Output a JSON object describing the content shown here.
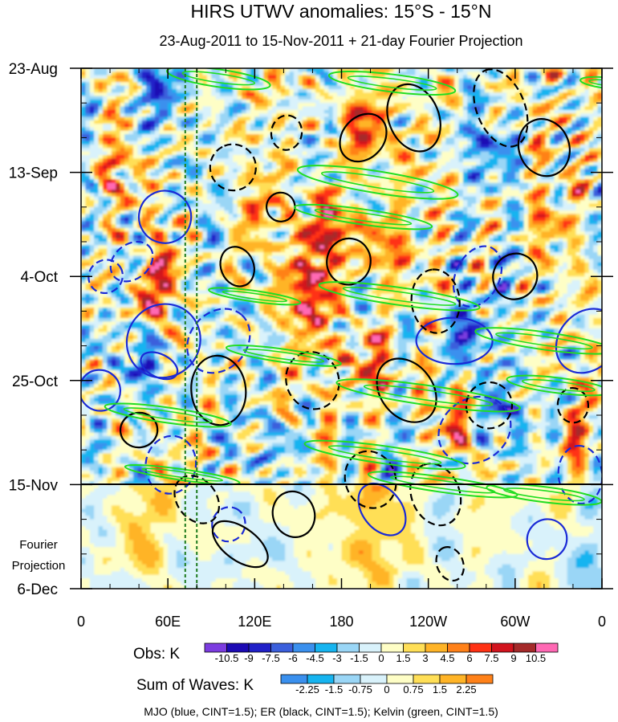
{
  "chart_data": {
    "type": "heatmap",
    "title": "HIRS UTWV anomalies: 15°S - 15°N",
    "subtitle": "23-Aug-2011 to 15-Nov-2011 + 21-day Fourier Projection",
    "x_axis": {
      "ticks": [
        "0",
        "60E",
        "120E",
        "180",
        "120W",
        "60W",
        "0"
      ],
      "range_deg_east": [
        0,
        360
      ]
    },
    "y_axis": {
      "ticks": [
        "23-Aug",
        "13-Sep",
        "4-Oct",
        "25-Oct",
        "15-Nov",
        "6-Dec"
      ],
      "tick_days": [
        0,
        21,
        42,
        63,
        84,
        105
      ],
      "orientation": "time increases downward"
    },
    "annotations": {
      "projection_label": [
        "Fourier",
        "Projection"
      ],
      "projection_start": "15-Nov",
      "footer": "MJO (blue, CINT=1.5); ER (black, CINT=1.5); Kelvin (green, CINT=1.5)"
    },
    "obs_colorbar": {
      "label": "Obs: K",
      "tick_labels": [
        "-10.5",
        "-9",
        "-7.5",
        "-6",
        "-4.5",
        "-3",
        "-1.5",
        "0",
        "1.5",
        "3",
        "4.5",
        "6",
        "7.5",
        "9",
        "10.5"
      ],
      "colors": [
        "#7c3ce0",
        "#1c0ab4",
        "#2020c8",
        "#3b5fdc",
        "#3a90ee",
        "#16b4f0",
        "#9ad6f6",
        "#d9f2fb",
        "#fefec6",
        "#ffdf57",
        "#ffb427",
        "#ff8119",
        "#ff3214",
        "#d2141e",
        "#a52a2a",
        "#ff69b4"
      ]
    },
    "waves_colorbar": {
      "label": "Sum of Waves: K",
      "tick_labels": [
        "-2.25",
        "-1.5",
        "-0.75",
        "0",
        "0.75",
        "1.5",
        "2.25"
      ],
      "colors": [
        "#3a90ee",
        "#16b4f0",
        "#9ad6f6",
        "#d9f2fb",
        "#fefec6",
        "#ffdf57",
        "#ffb427",
        "#ff8119"
      ]
    },
    "series": [
      {
        "name": "MJO",
        "color": "#1a2ad6",
        "cint": 1.5
      },
      {
        "name": "ER",
        "color": "#000000",
        "cint": 1.5
      },
      {
        "name": "Kelvin",
        "color": "#22dd22",
        "cint": 1.5
      }
    ],
    "reference_longitudes_deg_east": [
      72,
      80
    ],
    "contours": {
      "MJO": [
        {
          "lon": 58,
          "day": 30,
          "a": 9,
          "b": 2.4,
          "rot": -10,
          "sign": 1
        },
        {
          "lon": 57,
          "day": 55,
          "a": 13,
          "b": 3.3,
          "rot": -14,
          "sign": 1
        },
        {
          "lon": 54,
          "day": 60,
          "a": 4,
          "b": 1.8,
          "rot": -20,
          "sign": 1
        },
        {
          "lon": 17,
          "day": 42,
          "a": 6,
          "b": 1.5,
          "rot": -10,
          "sign": -1
        },
        {
          "lon": 13,
          "day": 65,
          "a": 7,
          "b": 1.9,
          "rot": -15,
          "sign": 1
        },
        {
          "lon": 35,
          "day": 39,
          "a": 8,
          "b": 1.6,
          "rot": -12,
          "sign": -1
        },
        {
          "lon": 95,
          "day": 55,
          "a": 12,
          "b": 2.6,
          "rot": -15,
          "sign": -1
        },
        {
          "lon": 62,
          "day": 80,
          "a": 10,
          "b": 2.3,
          "rot": -25,
          "sign": -1
        },
        {
          "lon": 258,
          "day": 55,
          "a": 8,
          "b": 3.5,
          "rot": -28,
          "sign": 1
        },
        {
          "lon": 272,
          "day": 73,
          "a": 13,
          "b": 2.9,
          "rot": -10,
          "sign": -1
        },
        {
          "lon": 208,
          "day": 89,
          "a": 10,
          "b": 1.8,
          "rot": -40,
          "sign": 1
        },
        {
          "lon": 274,
          "day": 42,
          "a": 11,
          "b": 2.0,
          "rot": -20,
          "sign": -1
        },
        {
          "lon": 350,
          "day": 55,
          "a": 12,
          "b": 2.6,
          "rot": -15,
          "sign": 1
        },
        {
          "lon": 345,
          "day": 82,
          "a": 10,
          "b": 2.0,
          "rot": -30,
          "sign": -1
        },
        {
          "lon": 322,
          "day": 95,
          "a": 7,
          "b": 1.8,
          "rot": -15,
          "sign": 1
        },
        {
          "lon": 102,
          "day": 92,
          "a": 6,
          "b": 1.5,
          "rot": -20,
          "sign": -1
        }
      ],
      "ER": [
        {
          "lon": 195,
          "day": 14,
          "a": 9,
          "b": 1.9,
          "rot": -15,
          "sign": 1
        },
        {
          "lon": 230,
          "day": 10,
          "a": 12,
          "b": 2.3,
          "rot": -35,
          "sign": 1
        },
        {
          "lon": 290,
          "day": 8,
          "a": 14,
          "b": 2.2,
          "rot": -35,
          "sign": -1
        },
        {
          "lon": 320,
          "day": 16,
          "a": 10,
          "b": 2.3,
          "rot": -35,
          "sign": 1
        },
        {
          "lon": 142,
          "day": 13,
          "a": 6,
          "b": 1.4,
          "rot": -25,
          "sign": -1
        },
        {
          "lon": 105,
          "day": 20,
          "a": 8,
          "b": 2.1,
          "rot": -35,
          "sign": -1
        },
        {
          "lon": 108,
          "day": 40,
          "a": 7,
          "b": 1.5,
          "rot": -35,
          "sign": 1
        },
        {
          "lon": 138,
          "day": 28,
          "a": 5,
          "b": 1.3,
          "rot": -30,
          "sign": 1
        },
        {
          "lon": 185,
          "day": 39,
          "a": 8,
          "b": 2.0,
          "rot": -25,
          "sign": 1
        },
        {
          "lon": 245,
          "day": 47,
          "a": 11,
          "b": 2.2,
          "rot": -30,
          "sign": -1
        },
        {
          "lon": 300,
          "day": 42,
          "a": 8,
          "b": 2.0,
          "rot": -20,
          "sign": 1
        },
        {
          "lon": 160,
          "day": 63,
          "a": 10,
          "b": 2.4,
          "rot": -35,
          "sign": -1
        },
        {
          "lon": 95,
          "day": 65,
          "a": 12,
          "b": 2.5,
          "rot": -30,
          "sign": 1
        },
        {
          "lon": 225,
          "day": 65,
          "a": 12,
          "b": 2.4,
          "rot": -40,
          "sign": 1
        },
        {
          "lon": 282,
          "day": 68,
          "a": 8,
          "b": 2.1,
          "rot": -20,
          "sign": -1
        },
        {
          "lon": 200,
          "day": 83,
          "a": 10,
          "b": 2.3,
          "rot": -35,
          "sign": -1
        },
        {
          "lon": 80,
          "day": 87,
          "a": 9,
          "b": 1.8,
          "rot": -40,
          "sign": -1
        },
        {
          "lon": 147,
          "day": 90,
          "a": 8,
          "b": 1.9,
          "rot": -35,
          "sign": 1
        },
        {
          "lon": 110,
          "day": 96,
          "a": 11,
          "b": 1.5,
          "rot": -45,
          "sign": 1
        },
        {
          "lon": 245,
          "day": 86,
          "a": 11,
          "b": 2.2,
          "rot": -35,
          "sign": -1
        },
        {
          "lon": 255,
          "day": 100,
          "a": 6,
          "b": 1.2,
          "rot": -35,
          "sign": -1
        },
        {
          "lon": 40,
          "day": 73,
          "a": 6,
          "b": 1.7,
          "rot": -30,
          "sign": 1
        },
        {
          "lon": 340,
          "day": 68,
          "a": 6,
          "b": 1.4,
          "rot": -30,
          "sign": -1
        }
      ],
      "Kelvin": [
        {
          "lon": 95,
          "day": 2,
          "a": 18,
          "b": 0.8,
          "rot": 8,
          "sign": 1
        },
        {
          "lon": 215,
          "day": 3,
          "a": 22,
          "b": 0.8,
          "rot": 7,
          "sign": 1
        },
        {
          "lon": 365,
          "day": 3,
          "a": 10,
          "b": 0.5,
          "rot": 6,
          "sign": 1
        },
        {
          "lon": 205,
          "day": 23,
          "a": 28,
          "b": 1.0,
          "rot": 9,
          "sign": 1
        },
        {
          "lon": 195,
          "day": 30,
          "a": 24,
          "b": 0.7,
          "rot": 8,
          "sign": 1
        },
        {
          "lon": 220,
          "day": 46,
          "a": 28,
          "b": 0.8,
          "rot": 8,
          "sign": 1
        },
        {
          "lon": 120,
          "day": 46,
          "a": 16,
          "b": 0.5,
          "rot": 8,
          "sign": 1
        },
        {
          "lon": 320,
          "day": 55,
          "a": 24,
          "b": 0.8,
          "rot": 8,
          "sign": 1
        },
        {
          "lon": 140,
          "day": 58,
          "a": 20,
          "b": 0.6,
          "rot": 8,
          "sign": 1
        },
        {
          "lon": 240,
          "day": 66,
          "a": 32,
          "b": 0.9,
          "rot": 8,
          "sign": 1
        },
        {
          "lon": 60,
          "day": 70,
          "a": 22,
          "b": 0.7,
          "rot": 8,
          "sign": 1
        },
        {
          "lon": 330,
          "day": 64,
          "a": 18,
          "b": 0.7,
          "rot": 7,
          "sign": 1
        },
        {
          "lon": 210,
          "day": 78,
          "a": 28,
          "b": 0.8,
          "rot": 8,
          "sign": 1
        },
        {
          "lon": 250,
          "day": 84,
          "a": 26,
          "b": 0.7,
          "rot": 8,
          "sign": 1
        },
        {
          "lon": 70,
          "day": 82,
          "a": 20,
          "b": 0.5,
          "rot": 8,
          "sign": 1
        },
        {
          "lon": 320,
          "day": 86,
          "a": 20,
          "b": 0.7,
          "rot": 7,
          "sign": 1
        }
      ]
    }
  }
}
